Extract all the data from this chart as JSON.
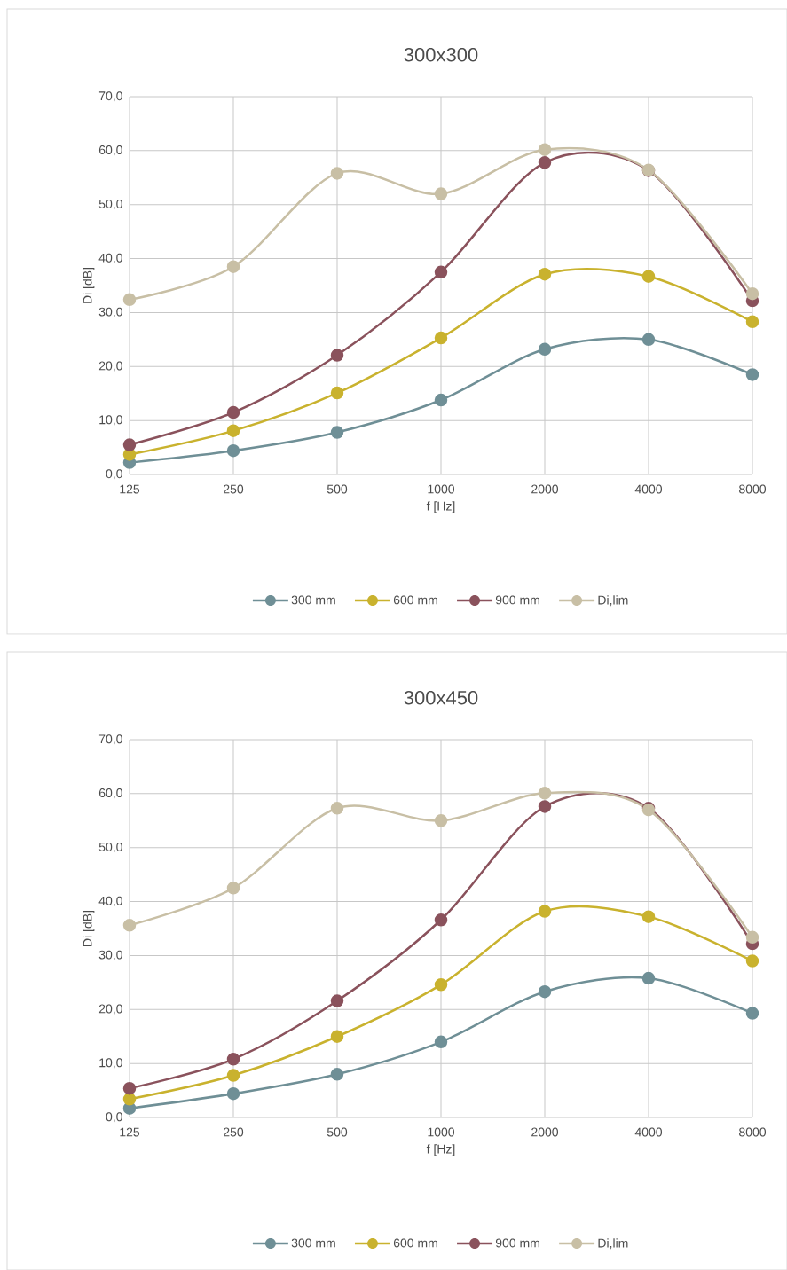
{
  "chart_data": [
    {
      "type": "line",
      "title": "300x300",
      "xlabel": "f [Hz]",
      "ylabel": "Di [dB]",
      "categories": [
        "125",
        "250",
        "500",
        "1000",
        "2000",
        "4000",
        "8000"
      ],
      "series": [
        {
          "name": "300 mm",
          "color": "#6f8f96",
          "values": [
            2.2,
            4.4,
            7.8,
            13.8,
            23.2,
            25.0,
            18.5
          ]
        },
        {
          "name": "600 mm",
          "color": "#c9b22e",
          "values": [
            3.7,
            8.1,
            15.1,
            25.3,
            37.1,
            36.7,
            28.3
          ]
        },
        {
          "name": "900 mm",
          "color": "#8a525c",
          "values": [
            5.5,
            11.5,
            22.1,
            37.5,
            57.8,
            56.3,
            32.2
          ]
        },
        {
          "name": "Di,lim",
          "color": "#c8bfa5",
          "values": [
            32.4,
            38.5,
            55.8,
            52.0,
            60.2,
            56.4,
            33.5
          ]
        }
      ],
      "ylim": [
        0,
        70
      ],
      "yticks": [
        {
          "value": 0,
          "label": "0,0"
        },
        {
          "value": 10,
          "label": "10,0"
        },
        {
          "value": 20,
          "label": "20,0"
        },
        {
          "value": 30,
          "label": "30,0"
        },
        {
          "value": 40,
          "label": "40,0"
        },
        {
          "value": 50,
          "label": "50,0"
        },
        {
          "value": 60,
          "label": "60,0"
        },
        {
          "value": 70,
          "label": "70,0"
        }
      ],
      "grid": true,
      "legend": "bottom",
      "marker": "circle"
    },
    {
      "type": "line",
      "title": "300x450",
      "xlabel": "f [Hz]",
      "ylabel": "Di [dB]",
      "categories": [
        "125",
        "250",
        "500",
        "1000",
        "2000",
        "4000",
        "8000"
      ],
      "series": [
        {
          "name": "300 mm",
          "color": "#6f8f96",
          "values": [
            1.7,
            4.4,
            8.0,
            14.0,
            23.3,
            25.8,
            19.3
          ]
        },
        {
          "name": "600 mm",
          "color": "#c9b22e",
          "values": [
            3.4,
            7.8,
            15.0,
            24.6,
            38.2,
            37.2,
            29.0
          ]
        },
        {
          "name": "900 mm",
          "color": "#8a525c",
          "values": [
            5.4,
            10.8,
            21.6,
            36.6,
            57.6,
            57.3,
            32.2
          ]
        },
        {
          "name": "Di,lim",
          "color": "#c8bfa5",
          "values": [
            35.6,
            42.5,
            57.3,
            55.0,
            60.1,
            57.0,
            33.4
          ]
        }
      ],
      "ylim": [
        0,
        70
      ],
      "yticks": [
        {
          "value": 0,
          "label": "0,0"
        },
        {
          "value": 10,
          "label": "10,0"
        },
        {
          "value": 20,
          "label": "20,0"
        },
        {
          "value": 30,
          "label": "30,0"
        },
        {
          "value": 40,
          "label": "40,0"
        },
        {
          "value": 50,
          "label": "50,0"
        },
        {
          "value": 60,
          "label": "60,0"
        },
        {
          "value": 70,
          "label": "70,0"
        }
      ],
      "grid": true,
      "legend": "bottom",
      "marker": "circle"
    }
  ]
}
